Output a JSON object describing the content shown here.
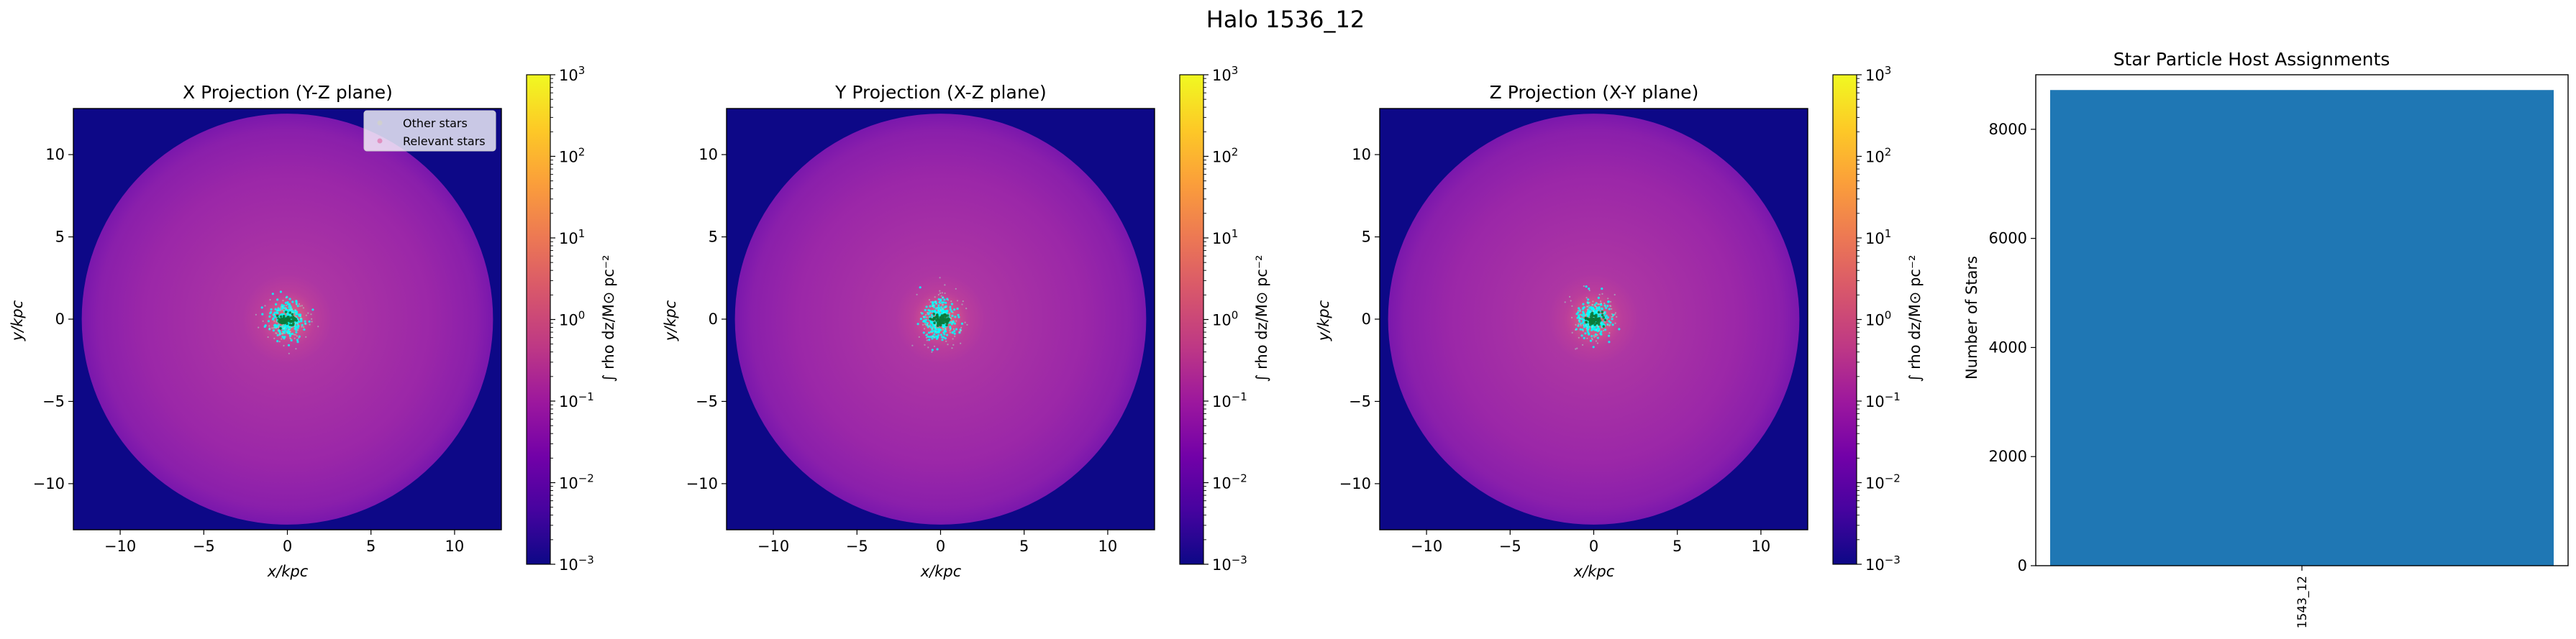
{
  "figure": {
    "suptitle": "Halo 1536_12"
  },
  "colors": {
    "cmap": [
      "#0d0887",
      "#46039f",
      "#7201a8",
      "#9c179e",
      "#bd3786",
      "#d8576b",
      "#ed7953",
      "#fb9f3a",
      "#fdca26",
      "#f0f921"
    ],
    "outer": "#0d0887",
    "halo_edge": "#8a1aa8",
    "halo_mid": "#a52fa4",
    "core": "#d85a7a",
    "other_stars": "#00ffff",
    "relevant_stars": "#0b7a3a",
    "bar": "#1f77b4"
  },
  "chart_data": [
    {
      "type": "heatmap",
      "title": "X Projection (Y-Z plane)",
      "xlabel": "x/kpc",
      "ylabel": "y/kpc",
      "xlim": [
        -12.8,
        12.8
      ],
      "ylim": [
        -12.8,
        12.8
      ],
      "xticks": [
        -10,
        -5,
        0,
        5,
        10
      ],
      "yticks": [
        -10,
        -5,
        0,
        5,
        10
      ],
      "halo_radius": 12.3,
      "colorbar": {
        "label": "∫ rho dz/M⊙ pc⁻²",
        "scale": "log",
        "range": [
          0.001,
          1000
        ],
        "ticks": [
          {
            "base": "10",
            "exp": "−3"
          },
          {
            "base": "10",
            "exp": "−2"
          },
          {
            "base": "10",
            "exp": "−1"
          },
          {
            "base": "10",
            "exp": "0"
          },
          {
            "base": "10",
            "exp": "1"
          },
          {
            "base": "10",
            "exp": "2"
          },
          {
            "base": "10",
            "exp": "3"
          }
        ]
      },
      "legend": {
        "position": "upper-right",
        "entries": [
          "Other stars",
          "Relevant stars"
        ]
      }
    },
    {
      "type": "heatmap",
      "title": "Y Projection (X-Z plane)",
      "xlabel": "x/kpc",
      "ylabel": "y/kpc",
      "xlim": [
        -12.8,
        12.8
      ],
      "ylim": [
        -12.8,
        12.8
      ],
      "xticks": [
        -10,
        -5,
        0,
        5,
        10
      ],
      "yticks": [
        -10,
        -5,
        0,
        5,
        10
      ],
      "halo_radius": 12.3,
      "colorbar": {
        "label": "∫ rho dz/M⊙ pc⁻²",
        "scale": "log",
        "range": [
          0.001,
          1000
        ],
        "ticks": [
          {
            "base": "10",
            "exp": "−3"
          },
          {
            "base": "10",
            "exp": "−2"
          },
          {
            "base": "10",
            "exp": "−1"
          },
          {
            "base": "10",
            "exp": "0"
          },
          {
            "base": "10",
            "exp": "1"
          },
          {
            "base": "10",
            "exp": "2"
          },
          {
            "base": "10",
            "exp": "3"
          }
        ]
      }
    },
    {
      "type": "heatmap",
      "title": "Z Projection (X-Y plane)",
      "xlabel": "x/kpc",
      "ylabel": "y/kpc",
      "xlim": [
        -12.8,
        12.8
      ],
      "ylim": [
        -12.8,
        12.8
      ],
      "xticks": [
        -10,
        -5,
        0,
        5,
        10
      ],
      "yticks": [
        -10,
        -5,
        0,
        5,
        10
      ],
      "halo_radius": 12.3,
      "colorbar": {
        "label": "∫ rho dz/M⊙ pc⁻²",
        "scale": "log",
        "range": [
          0.001,
          1000
        ],
        "ticks": [
          {
            "base": "10",
            "exp": "−3"
          },
          {
            "base": "10",
            "exp": "−2"
          },
          {
            "base": "10",
            "exp": "−1"
          },
          {
            "base": "10",
            "exp": "0"
          },
          {
            "base": "10",
            "exp": "1"
          },
          {
            "base": "10",
            "exp": "2"
          },
          {
            "base": "10",
            "exp": "3"
          }
        ]
      }
    },
    {
      "type": "bar",
      "title": "Star Particle Host Assignments",
      "xlabel": "",
      "ylabel": "Number of Stars",
      "categories": [
        "1543_12"
      ],
      "values": [
        8720
      ],
      "ylim": [
        0,
        9000
      ],
      "yticks": [
        0,
        2000,
        4000,
        6000,
        8000
      ]
    }
  ]
}
